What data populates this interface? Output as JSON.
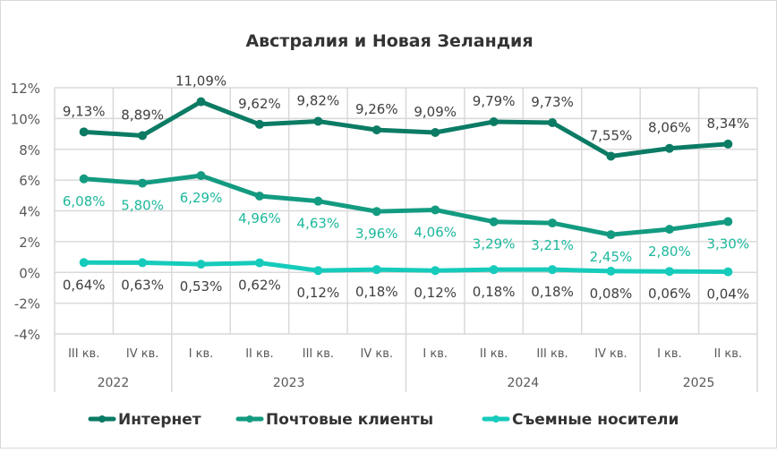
{
  "chart_data": {
    "type": "line",
    "title": "Австралия и Новая Зеландия",
    "categories": [
      "III кв.",
      "IV кв.",
      "I кв.",
      "II кв.",
      "III кв.",
      "IV кв.",
      "I кв.",
      "II кв.",
      "III кв.",
      "IV кв.",
      "I кв.",
      "II кв."
    ],
    "year_groups": [
      {
        "label": "2022",
        "count": 2
      },
      {
        "label": "2023",
        "count": 4
      },
      {
        "label": "2024",
        "count": 4
      },
      {
        "label": "2025",
        "count": 2
      }
    ],
    "ylim": [
      -4,
      12
    ],
    "yticks": [
      12,
      10,
      8,
      6,
      4,
      2,
      0,
      -2,
      -4
    ],
    "ytick_labels": [
      "12%",
      "10%",
      "8%",
      "6%",
      "4%",
      "2%",
      "0%",
      "-2%",
      "-4%"
    ],
    "grid": true,
    "legend_position": "bottom",
    "series": [
      {
        "name": "Интернет",
        "color": "#0b7b64",
        "label_color": "#404040",
        "label_pos": "above",
        "values": [
          9.13,
          8.89,
          11.09,
          9.62,
          9.82,
          9.26,
          9.09,
          9.79,
          9.73,
          7.55,
          8.06,
          8.34
        ],
        "labels": [
          "9,13%",
          "8,89%",
          "11,09%",
          "9,62%",
          "9,82%",
          "9,26%",
          "9,09%",
          "9,79%",
          "9,73%",
          "7,55%",
          "8,06%",
          "8,34%"
        ]
      },
      {
        "name": "Почтовые клиенты",
        "color": "#139b81",
        "label_color": "#1db89c",
        "label_pos": "below",
        "values": [
          6.08,
          5.8,
          6.29,
          4.96,
          4.63,
          3.96,
          4.06,
          3.29,
          3.21,
          2.45,
          2.8,
          3.3
        ],
        "labels": [
          "6,08%",
          "5,80%",
          "6,29%",
          "4,96%",
          "4,63%",
          "3,96%",
          "4,06%",
          "3,29%",
          "3,21%",
          "2,45%",
          "2,80%",
          "3,30%"
        ]
      },
      {
        "name": "Съемные носители",
        "color": "#16cbbb",
        "label_color": "#404040",
        "label_pos": "below",
        "values": [
          0.64,
          0.63,
          0.53,
          0.62,
          0.12,
          0.18,
          0.12,
          0.18,
          0.18,
          0.08,
          0.06,
          0.04
        ],
        "labels": [
          "0,64%",
          "0,63%",
          "0,53%",
          "0,62%",
          "0,12%",
          "0,18%",
          "0,12%",
          "0,18%",
          "0,18%",
          "0,08%",
          "0,06%",
          "0,04%"
        ]
      }
    ]
  }
}
